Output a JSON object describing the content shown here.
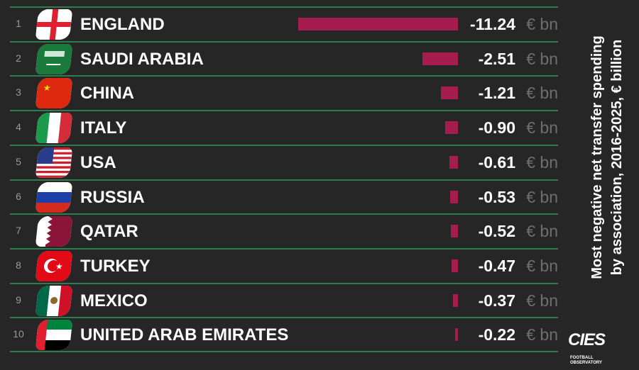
{
  "chart_data": {
    "type": "bar",
    "orientation": "horizontal",
    "title": "Most negative net transfer spending by association, 2016-2025, € billion",
    "title_lines": [
      "Most negative net transfer spending",
      "by association, 2016-2025, € billion"
    ],
    "unit": "€ bn",
    "ranks": [
      "1",
      "2",
      "3",
      "4",
      "5",
      "6",
      "7",
      "8",
      "9",
      "10"
    ],
    "categories": [
      "ENGLAND",
      "SAUDI ARABIA",
      "CHINA",
      "ITALY",
      "USA",
      "RUSSIA",
      "QATAR",
      "TURKEY",
      "MEXICO",
      "UNITED ARAB EMIRATES"
    ],
    "values": [
      -11.24,
      -2.51,
      -1.21,
      -0.9,
      -0.61,
      -0.53,
      -0.52,
      -0.47,
      -0.37,
      -0.22
    ],
    "value_labels": [
      "-11.24",
      "-2.51",
      "-1.21",
      "-0.90",
      "-0.61",
      "-0.53",
      "-0.52",
      "-0.47",
      "-0.37",
      "-0.22"
    ],
    "bar_color": "#a51c4f",
    "grid": false
  },
  "logo": {
    "text": "CIES",
    "sub": "FOOTBALL OBSERVATORY"
  },
  "colors": {
    "background": "#262626",
    "divider": "#2f7d4f",
    "unit_text": "#6e6e6e"
  }
}
